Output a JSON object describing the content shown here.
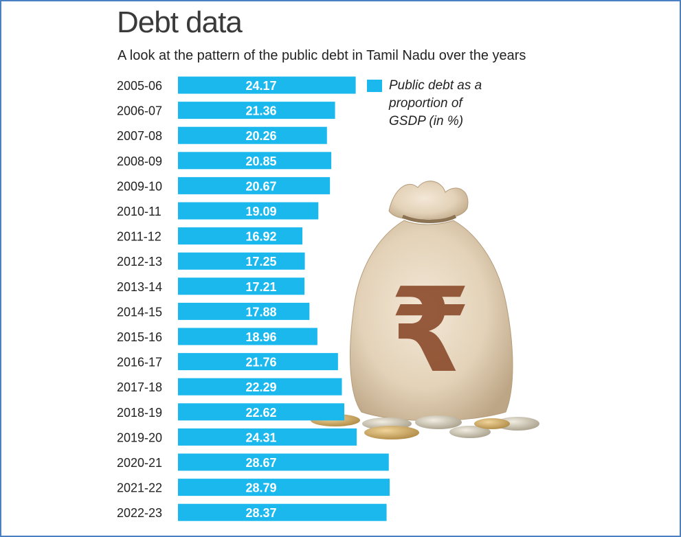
{
  "title": "Debt data",
  "subtitle": "A look at the pattern of the public debt in Tamil Nadu over the years",
  "legend_label": "Public debt as a proportion of GSDP (in %)",
  "colors": {
    "bar": "#1bb8ee",
    "bar_label": "#ffffff",
    "category_label": "#222222",
    "frame": "#4a7fc1"
  },
  "illustration": {
    "icon": "money-bag-rupee-icon",
    "symbol": "₹"
  },
  "chart_data": {
    "type": "bar",
    "orientation": "horizontal",
    "categories": [
      "2005-06",
      "2006-07",
      "2007-08",
      "2008-09",
      "2009-10",
      "2010-11",
      "2011-12",
      "2012-13",
      "2013-14",
      "2014-15",
      "2015-16",
      "2016-17",
      "2017-18",
      "2018-19",
      "2019-20",
      "2020-21",
      "2021-22",
      "2022-23"
    ],
    "values": [
      24.17,
      21.36,
      20.26,
      20.85,
      20.67,
      19.09,
      16.92,
      17.25,
      17.21,
      17.88,
      18.96,
      21.76,
      22.29,
      22.62,
      24.31,
      28.67,
      28.79,
      28.37
    ],
    "labels": [
      "24.17",
      "21.36",
      "20.26",
      "20.85",
      "20.67",
      "19.09",
      "16.92",
      "17.25",
      "17.21",
      "17.88",
      "18.96",
      "21.76",
      "22.29",
      "22.62",
      "24.31",
      "28.67",
      "28.79",
      "28.37"
    ],
    "title": "Debt data",
    "subtitle": "A look at the pattern of the public debt in Tamil Nadu over the years",
    "legend": [
      "Public debt as a proportion of GSDP (in %)"
    ],
    "legend_position": "top-right",
    "xlabel": "",
    "ylabel": "",
    "grid": false
  }
}
